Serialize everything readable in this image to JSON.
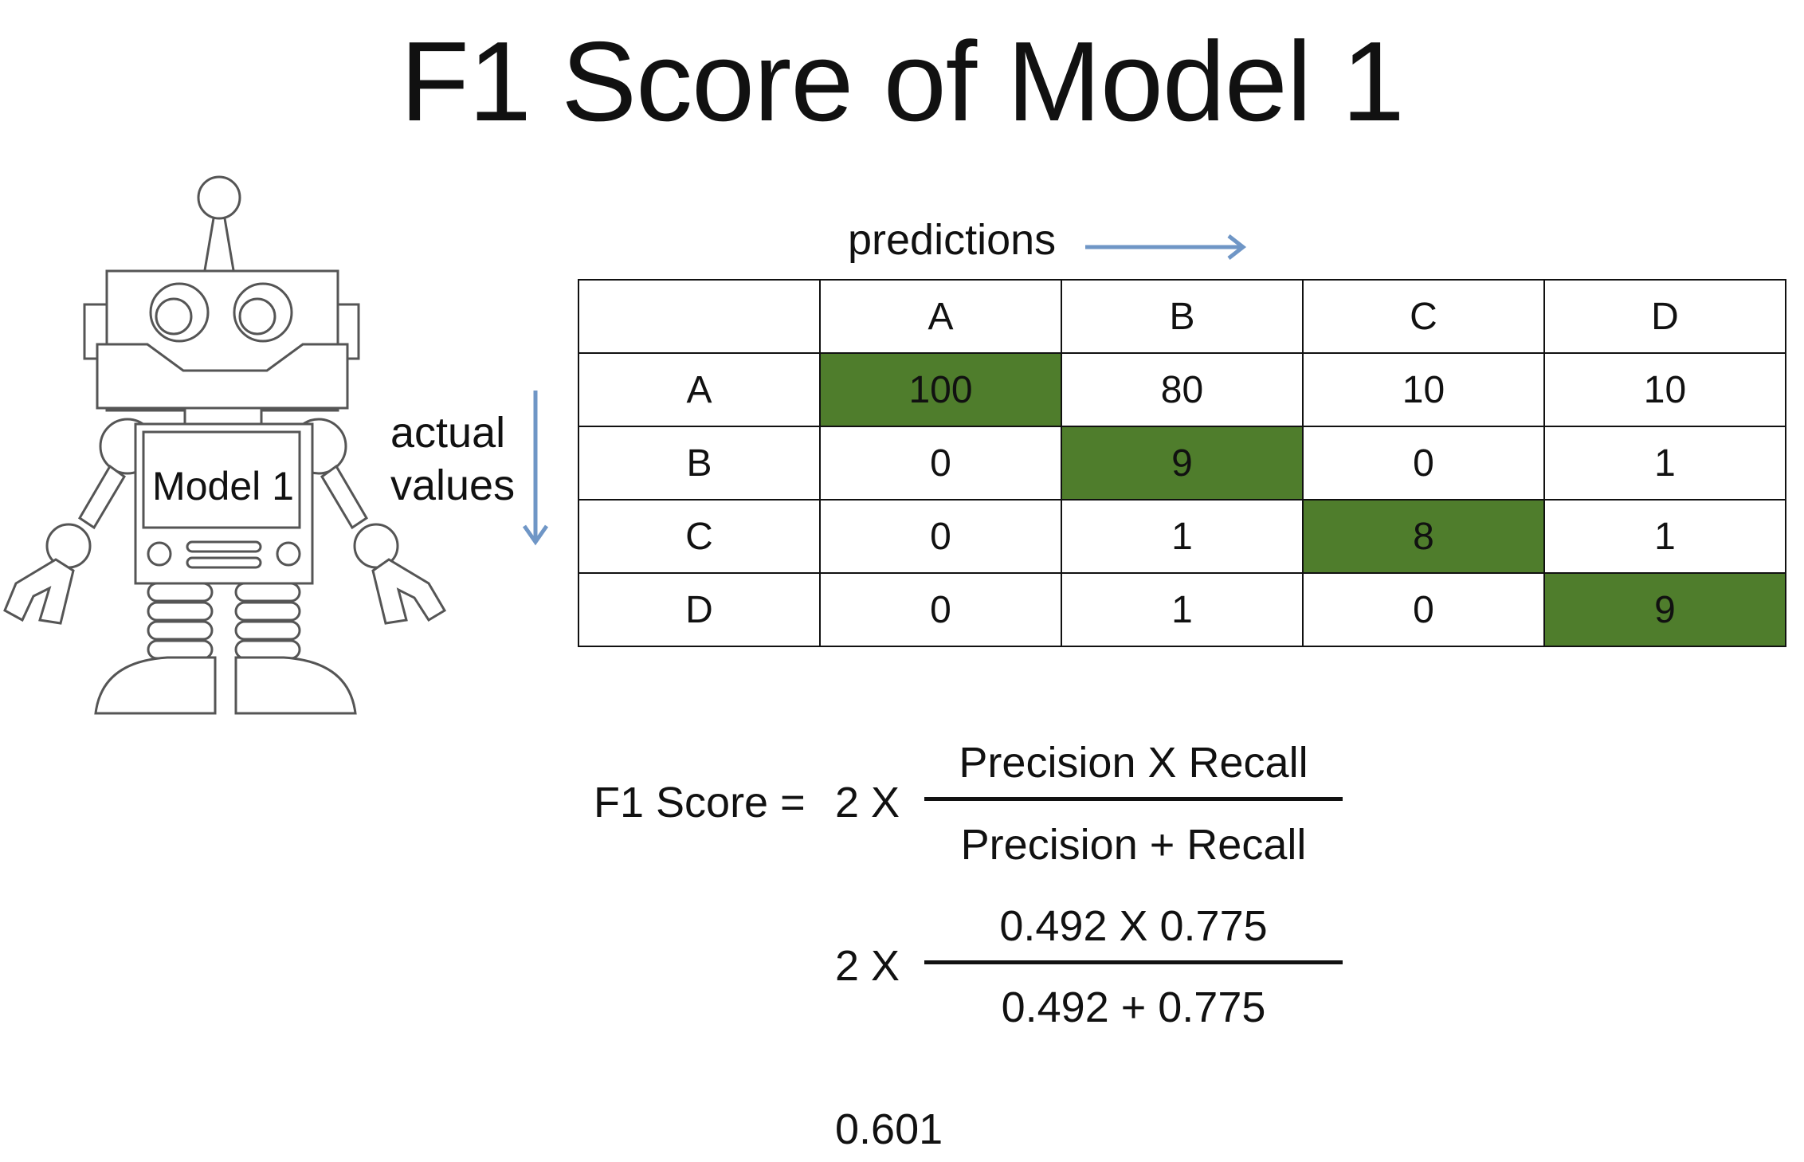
{
  "title": "F1 Score of Model 1",
  "robot": {
    "label": "Model 1",
    "icon": "robot-icon"
  },
  "axes": {
    "predictions_label": "predictions",
    "actual_label_line1": "actual",
    "actual_label_line2": "values",
    "arrow_color": "#6f96c6"
  },
  "confusion_matrix": {
    "column_headers": [
      "A",
      "B",
      "C",
      "D"
    ],
    "rows": [
      {
        "label": "A",
        "values": [
          "100",
          "80",
          "10",
          "10"
        ]
      },
      {
        "label": "B",
        "values": [
          "0",
          "9",
          "0",
          "1"
        ]
      },
      {
        "label": "C",
        "values": [
          "0",
          "1",
          "8",
          "1"
        ]
      },
      {
        "label": "D",
        "values": [
          "0",
          "1",
          "0",
          "9"
        ]
      }
    ],
    "highlight_color": "#4f7d2c"
  },
  "formula": {
    "lhs": "F1 Score =",
    "multiplier": "2 X",
    "numerator": "Precision X Recall",
    "denominator": "Precision + Recall",
    "sub_multiplier": "2 X",
    "sub_numerator": "0.492 X 0.775",
    "sub_denominator": "0.492 + 0.775",
    "result": "0.601"
  }
}
